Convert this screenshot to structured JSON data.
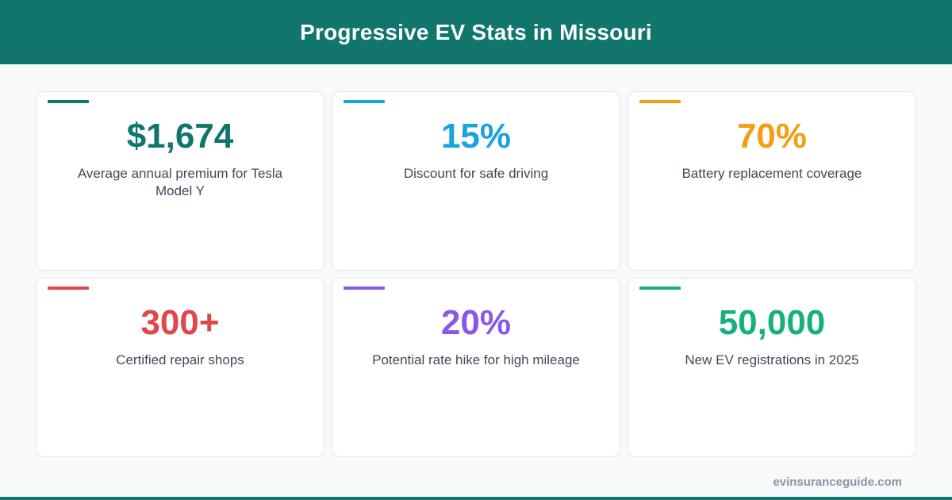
{
  "header": {
    "title": "Progressive EV Stats in Missouri"
  },
  "colors": {
    "header_bg": "#10766c",
    "card_1": "#10766c",
    "card_2": "#1aa3dd",
    "card_3": "#f0a012",
    "card_4": "#e0464a",
    "card_5": "#8a58e6",
    "card_6": "#16b07f"
  },
  "stats": [
    {
      "value": "$1,674",
      "label": "Average annual premium for Tesla Model Y",
      "color": "#10766c"
    },
    {
      "value": "15%",
      "label": "Discount for safe driving",
      "color": "#1aa3dd"
    },
    {
      "value": "70%",
      "label": "Battery replacement coverage",
      "color": "#f0a012"
    },
    {
      "value": "300+",
      "label": "Certified repair shops",
      "color": "#e0464a"
    },
    {
      "value": "20%",
      "label": "Potential rate hike for high mileage",
      "color": "#8a58e6"
    },
    {
      "value": "50,000",
      "label": "New EV registrations in 2025",
      "color": "#16b07f"
    }
  ],
  "footer": {
    "brand": "evinsuranceguide.com"
  }
}
